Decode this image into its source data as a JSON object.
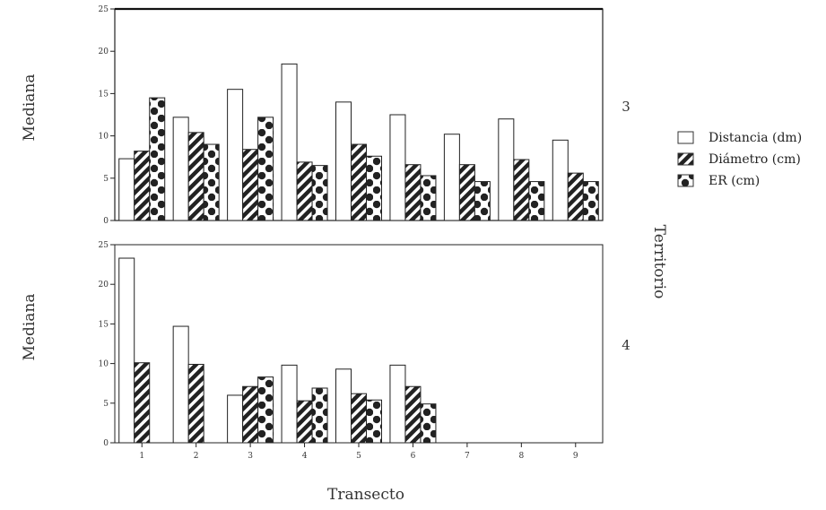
{
  "chart_data": {
    "type": "bar",
    "xlabel": "Transecto",
    "ylabel": "Mediana",
    "facet_label": "Territorio",
    "categories": [
      "1",
      "2",
      "3",
      "4",
      "5",
      "6",
      "7",
      "8",
      "9"
    ],
    "ylim": [
      0,
      25
    ],
    "yticks": [
      0,
      5,
      10,
      15,
      20,
      25
    ],
    "grid": false,
    "legend_position": "right",
    "series": [
      {
        "name": "Distancia (dm)",
        "pattern": "blank"
      },
      {
        "name": "Diámetro (cm)",
        "pattern": "diagonal-stripes"
      },
      {
        "name": "ER (cm)",
        "pattern": "dots"
      }
    ],
    "panels": [
      {
        "label": "3",
        "values": [
          [
            7.3,
            12.2,
            15.5,
            18.5,
            14.0,
            12.5,
            10.2,
            12.0,
            9.5
          ],
          [
            8.2,
            10.4,
            8.4,
            6.9,
            9.0,
            6.6,
            6.6,
            7.2,
            5.6
          ],
          [
            14.5,
            9.0,
            12.2,
            6.5,
            7.6,
            5.3,
            4.6,
            4.6,
            4.6
          ]
        ]
      },
      {
        "label": "4",
        "values": [
          [
            23.3,
            14.7,
            6.0,
            9.8,
            9.3,
            9.8,
            null,
            null,
            null
          ],
          [
            10.1,
            9.9,
            7.1,
            5.3,
            6.2,
            7.1,
            null,
            null,
            null
          ],
          [
            null,
            null,
            8.3,
            6.9,
            5.4,
            4.9,
            null,
            null,
            null
          ]
        ]
      }
    ]
  }
}
